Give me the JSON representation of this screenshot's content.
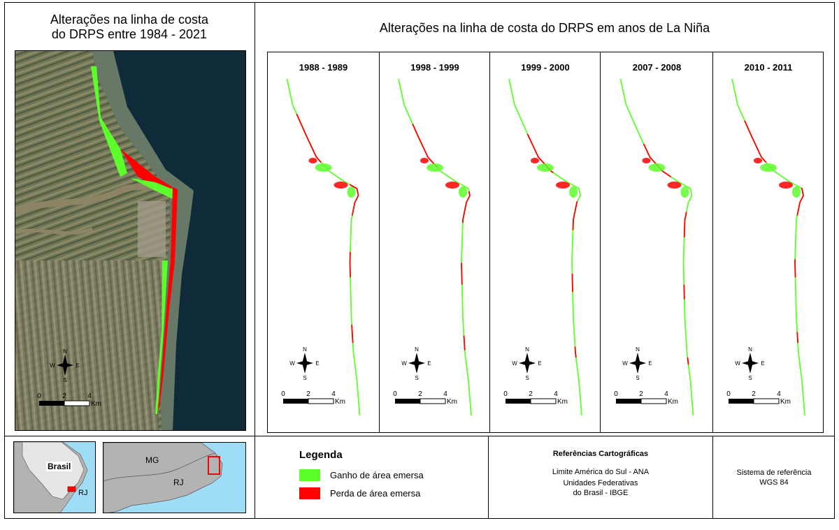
{
  "left_title": {
    "line1": "Alterações na linha de costa",
    "line2": "do DRPS entre 1984 - 2021"
  },
  "right_title": "Alterações na linha de costa do DRPS em anos de La Niña",
  "panels": [
    "1988 - 1989",
    "1998 - 1999",
    "1999 - 2000",
    "2007 - 2008",
    "2010 - 2011"
  ],
  "compass": {
    "n": "N",
    "s": "S",
    "e": "E",
    "w": "W"
  },
  "scale": {
    "t0": "0",
    "t2": "2",
    "t4": "4",
    "unit": "Km"
  },
  "inset": {
    "country": "Brasil",
    "state_rj": "RJ",
    "state_mg": "MG"
  },
  "legend": {
    "title": "Legenda",
    "items": [
      {
        "label": "Ganho de área emersa",
        "color": "#5cff2a"
      },
      {
        "label": "Perda de área emersa",
        "color": "#ff0000"
      }
    ]
  },
  "references": {
    "title": "Referências Cartográficas",
    "line1": "Limite América do Sul - ANA",
    "line2": "Unidades Federativas",
    "line3": "do Brasil - IBGE"
  },
  "crs": {
    "line1": "Sistema de referência",
    "line2": "WGS 84"
  },
  "colors": {
    "gain": "#5cff2a",
    "loss": "#ff0000",
    "sea": "#0f2b3a",
    "ocean_inset": "#9fdcf5",
    "land_inset": "#b3b3b3"
  }
}
